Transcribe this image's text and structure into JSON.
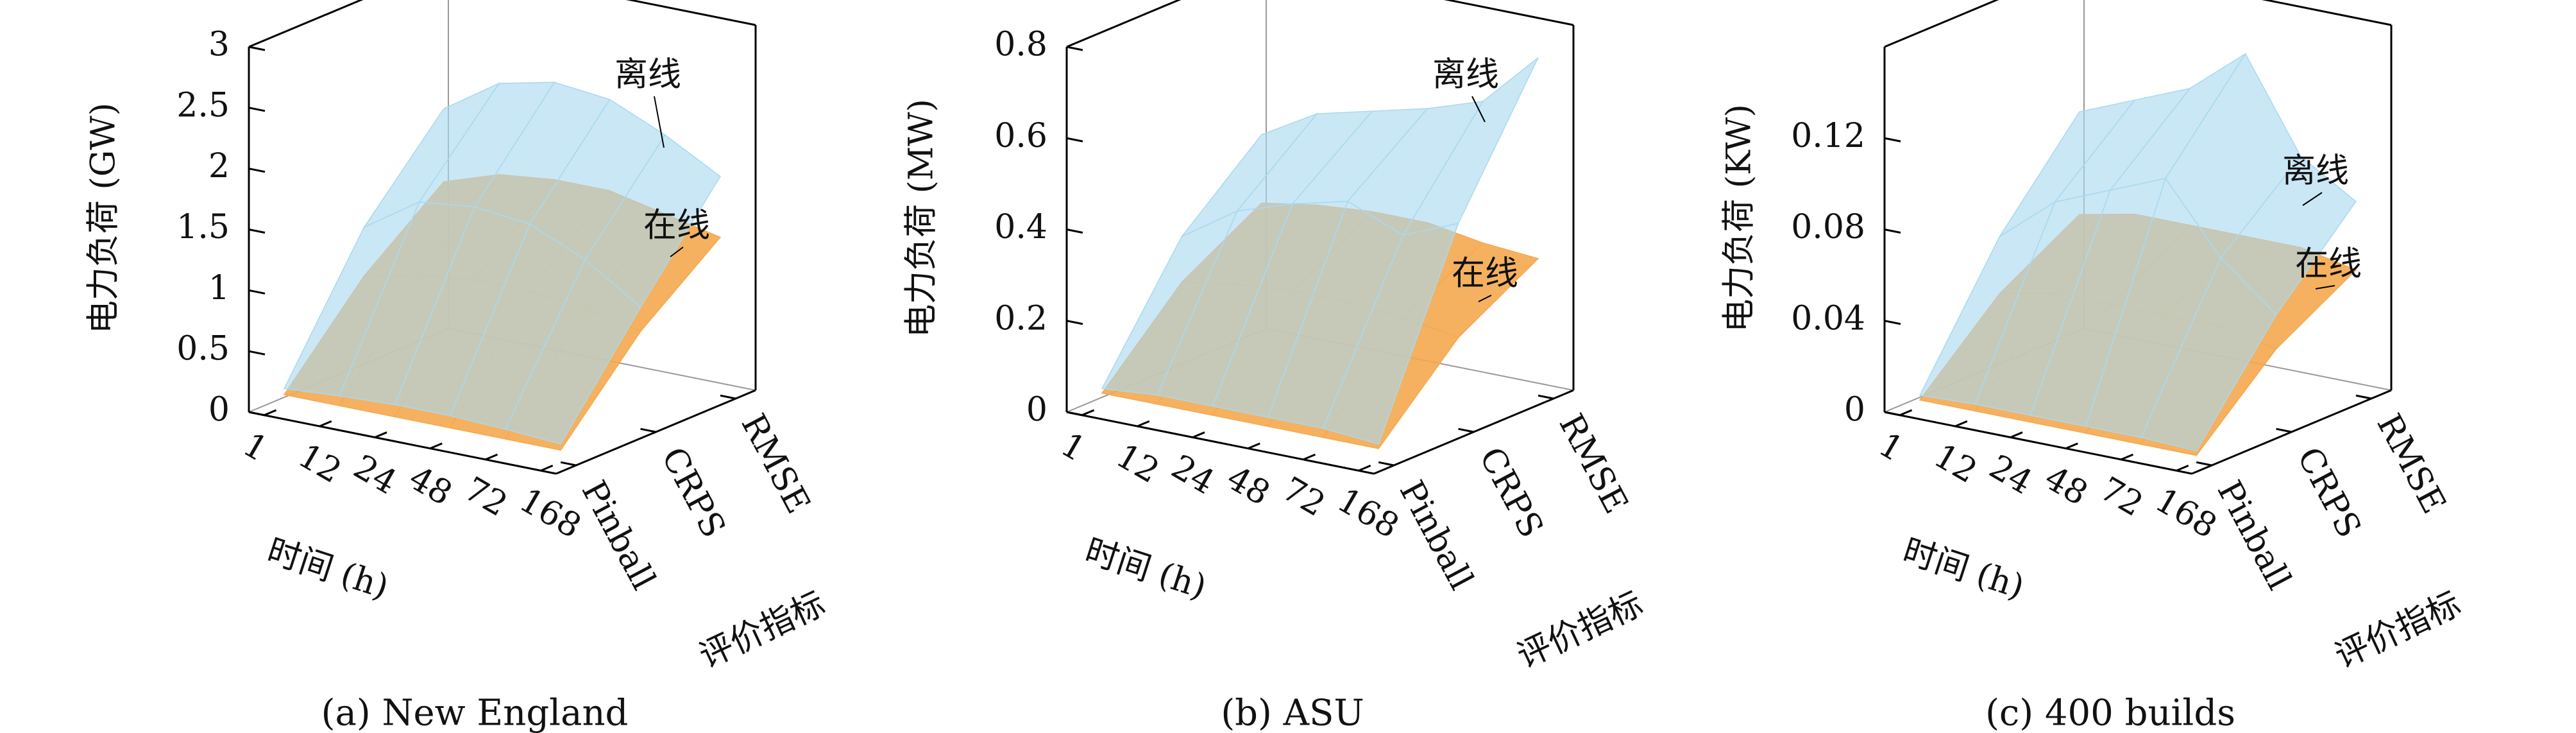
{
  "chart_data": [
    {
      "type": "surface3d",
      "title": "(a) New England",
      "xlabel": "时间 (h)",
      "ylabel": "评价指标",
      "zlabel": "电力负荷 (GW)",
      "x": [
        "1",
        "12",
        "24",
        "48",
        "72",
        "168"
      ],
      "y": [
        "Pinball",
        "CRPS",
        "RMSE"
      ],
      "zlim": [
        0,
        3
      ],
      "zticks": [
        0,
        0.5,
        1.0,
        1.5,
        2.0,
        2.5,
        3.0
      ],
      "series": [
        {
          "name": "在线",
          "color": "#f4a94f",
          "values": [
            [
              0.1,
              0.1,
              0.1,
              0.1,
              0.1,
              0.1
            ],
            [
              0.8,
              0.9,
              0.95,
              0.95,
              0.9,
              0.8
            ],
            [
              1.3,
              1.45,
              1.5,
              1.5,
              1.4,
              1.3
            ]
          ]
        },
        {
          "name": "离线",
          "color": "#a9d9ef",
          "values": [
            [
              0.15,
              0.18,
              0.2,
              0.2,
              0.18,
              0.15
            ],
            [
              1.2,
              1.5,
              1.55,
              1.5,
              1.3,
              1.0
            ],
            [
              1.9,
              2.2,
              2.3,
              2.25,
              2.05,
              1.8
            ]
          ]
        }
      ]
    },
    {
      "type": "surface3d",
      "title": "(b) ASU",
      "xlabel": "时间 (h)",
      "ylabel": "评价指标",
      "zlabel": "电力负荷 (MW)",
      "x": [
        "1",
        "12",
        "24",
        "48",
        "72",
        "168"
      ],
      "y": [
        "Pinball",
        "CRPS",
        "RMSE"
      ],
      "zlim": [
        0,
        0.8
      ],
      "zticks": [
        0,
        0.2,
        0.4,
        0.6,
        0.8
      ],
      "series": [
        {
          "name": "在线",
          "color": "#f4a94f",
          "values": [
            [
              0.03,
              0.03,
              0.03,
              0.03,
              0.03,
              0.03
            ],
            [
              0.2,
              0.22,
              0.23,
              0.23,
              0.22,
              0.2
            ],
            [
              0.3,
              0.32,
              0.33,
              0.33,
              0.31,
              0.3
            ]
          ]
        },
        {
          "name": "离线",
          "color": "#a9d9ef",
          "values": [
            [
              0.04,
              0.05,
              0.05,
              0.05,
              0.05,
              0.04
            ],
            [
              0.3,
              0.38,
              0.42,
              0.45,
              0.4,
              0.45
            ],
            [
              0.45,
              0.52,
              0.55,
              0.58,
              0.62,
              0.74
            ]
          ]
        }
      ]
    },
    {
      "type": "surface3d",
      "title": "(c) 400 builds",
      "xlabel": "时间 (h)",
      "ylabel": "评价指标",
      "zlabel": "电力负荷 (KW)",
      "x": [
        "1",
        "12",
        "24",
        "48",
        "72",
        "168"
      ],
      "y": [
        "Pinball",
        "CRPS",
        "RMSE"
      ],
      "zlim": [
        0,
        0.16
      ],
      "zticks": [
        0,
        0.04,
        0.08,
        0.12
      ],
      "series": [
        {
          "name": "在线",
          "color": "#f4a94f",
          "values": [
            [
              0.003,
              0.003,
              0.003,
              0.003,
              0.003,
              0.003
            ],
            [
              0.035,
              0.04,
              0.04,
              0.04,
              0.04,
              0.035
            ],
            [
              0.055,
              0.06,
              0.06,
              0.06,
              0.06,
              0.055
            ]
          ]
        },
        {
          "name": "离线",
          "color": "#a9d9ef",
          "values": [
            [
              0.005,
              0.006,
              0.006,
              0.006,
              0.006,
              0.005
            ],
            [
              0.06,
              0.08,
              0.09,
              0.1,
              0.07,
              0.05
            ],
            [
              0.1,
              0.11,
              0.12,
              0.14,
              0.1,
              0.085
            ]
          ]
        }
      ]
    }
  ]
}
